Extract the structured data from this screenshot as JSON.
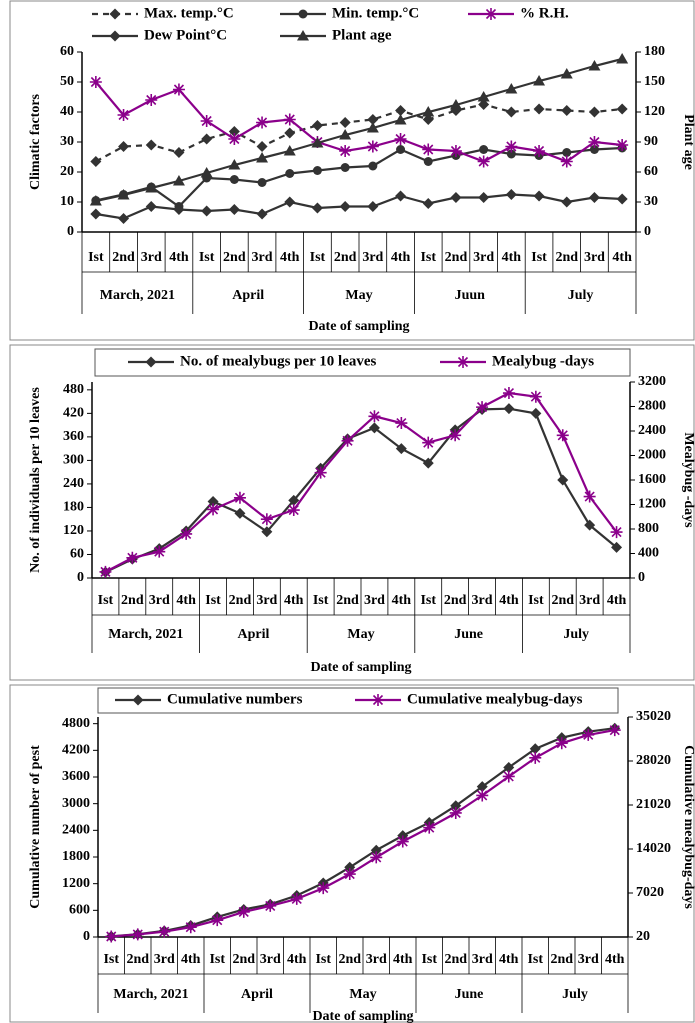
{
  "chart_data": [
    {
      "type": "line",
      "categories": [
        "Ist",
        "2nd",
        "3rd",
        "4th",
        "Ist",
        "2nd",
        "3rd",
        "4th",
        "Ist",
        "2nd",
        "3rd",
        "4th",
        "Ist",
        "2nd",
        "3rd",
        "4th",
        "Ist",
        "2nd",
        "3rd",
        "4th"
      ],
      "groups": [
        "March, 2021",
        "April",
        "May",
        "Juun",
        "July"
      ],
      "xlabel": "Date of sampling",
      "ylabel": "Climatic factors",
      "y2label": "Plant age",
      "ylim": [
        0,
        60
      ],
      "yticks": [
        0,
        10,
        20,
        30,
        40,
        50,
        60
      ],
      "y2lim": [
        0,
        180
      ],
      "y2ticks": [
        0,
        30,
        60,
        90,
        120,
        150,
        180
      ],
      "series": [
        {
          "name": "Max. temp.°C",
          "color": "#333333",
          "marker": "diamond",
          "dashed": true,
          "values": [
            23.5,
            28.5,
            29,
            26.5,
            31,
            33.5,
            28.5,
            33,
            35.5,
            36.5,
            37.5,
            40.5,
            37.5,
            40.5,
            42.5,
            40,
            41,
            40.5,
            40,
            41
          ]
        },
        {
          "name": "Min. temp.°C",
          "color": "#333333",
          "marker": "circle",
          "dashed": false,
          "values": [
            10.5,
            12.5,
            15,
            8.5,
            18,
            17.5,
            16.5,
            19.5,
            20.5,
            21.5,
            22,
            27.5,
            23.5,
            25.5,
            27.5,
            26,
            25.5,
            26.5,
            27.5,
            28
          ]
        },
        {
          "name": "% R.H.",
          "color": "#8b008b",
          "marker": "star",
          "dashed": false,
          "values": [
            50,
            39,
            44,
            47.5,
            37,
            31,
            36.5,
            37.5,
            30,
            27,
            28.5,
            31,
            27.5,
            27,
            23.5,
            28.5,
            27,
            23.5,
            30,
            29
          ]
        },
        {
          "name": "Dew Point°C",
          "color": "#333333",
          "marker": "diamond",
          "dashed": false,
          "values": [
            6,
            4.5,
            8.5,
            7.5,
            7,
            7.5,
            6,
            10,
            8,
            8.5,
            8.5,
            12,
            9.5,
            11.5,
            11.5,
            12.5,
            12,
            10,
            11.5,
            11
          ]
        },
        {
          "name": "Plant age",
          "color": "#333333",
          "marker": "triangle",
          "dashed": false,
          "axis": "y2",
          "values": [
            31,
            37,
            44,
            51,
            59,
            67,
            74,
            81,
            89,
            97,
            104,
            112,
            120,
            127,
            135,
            143,
            151,
            158,
            166,
            173
          ]
        }
      ]
    },
    {
      "type": "line",
      "categories": [
        "Ist",
        "2nd",
        "3rd",
        "4th",
        "Ist",
        "2nd",
        "3rd",
        "4th",
        "Ist",
        "2nd",
        "3rd",
        "4th",
        "Ist",
        "2nd",
        "3rd",
        "4th",
        "Ist",
        "2nd",
        "3rd",
        "4th"
      ],
      "groups": [
        "March, 2021",
        "April",
        "May",
        "June",
        "July"
      ],
      "xlabel": "Date of sampling",
      "ylabel": "No. of individuals per 10 leaves",
      "y2label": "Mealybug -days",
      "ylim": [
        0,
        500
      ],
      "yticks": [
        0,
        60,
        120,
        180,
        240,
        300,
        360,
        420,
        480
      ],
      "y2lim": [
        0,
        3200
      ],
      "y2ticks": [
        0,
        400,
        800,
        1200,
        1600,
        2000,
        2400,
        2800,
        3200
      ],
      "series": [
        {
          "name": "No. of mealybugs per 10 leaves",
          "color": "#333333",
          "marker": "diamond",
          "dashed": false,
          "values": [
            15,
            48,
            75,
            120,
            195,
            165,
            118,
            198,
            280,
            355,
            383,
            330,
            293,
            378,
            430,
            432,
            420,
            250,
            135,
            78
          ]
        },
        {
          "name": "Mealybug -days",
          "color": "#8b008b",
          "marker": "star",
          "dashed": false,
          "axis": "y2",
          "values": [
            100,
            330,
            430,
            720,
            1120,
            1310,
            960,
            1110,
            1720,
            2240,
            2640,
            2530,
            2210,
            2330,
            2790,
            3020,
            2960,
            2330,
            1330,
            750
          ]
        }
      ]
    },
    {
      "type": "line",
      "categories": [
        "Ist",
        "2nd",
        "3rd",
        "4th",
        "Ist",
        "2nd",
        "3rd",
        "4th",
        "Ist",
        "2nd",
        "3rd",
        "4th",
        "Ist",
        "2nd",
        "3rd",
        "4th",
        "Ist",
        "2nd",
        "3rd",
        "4th"
      ],
      "groups": [
        "March, 2021",
        "April",
        "May",
        "June",
        "July"
      ],
      "xlabel": "Date of sampling",
      "ylabel": "Cumulative number of pest",
      "y2label": "Cumulative mealybug-days",
      "ylim": [
        0,
        4950
      ],
      "yticks": [
        0,
        600,
        1200,
        1800,
        2400,
        3000,
        3600,
        4200,
        4800
      ],
      "y2lim": [
        20,
        35020
      ],
      "y2ticks": [
        20,
        7020,
        14020,
        21020,
        28020,
        35020
      ],
      "series": [
        {
          "name": "Cumulative numbers",
          "color": "#333333",
          "marker": "diamond",
          "dashed": false,
          "values": [
            15,
            63,
            138,
            258,
            453,
            618,
            736,
            934,
            1214,
            1569,
            1952,
            2282,
            2575,
            2953,
            3383,
            3815,
            4235,
            4485,
            4620,
            4698
          ]
        },
        {
          "name": "Cumulative mealybug-days",
          "color": "#8b008b",
          "marker": "star",
          "dashed": false,
          "axis": "y2",
          "values": [
            100,
            430,
            860,
            1580,
            2700,
            4010,
            4970,
            6080,
            7800,
            10040,
            12680,
            15210,
            17420,
            19750,
            22540,
            25560,
            28520,
            30850,
            32180,
            32930
          ]
        }
      ]
    }
  ]
}
